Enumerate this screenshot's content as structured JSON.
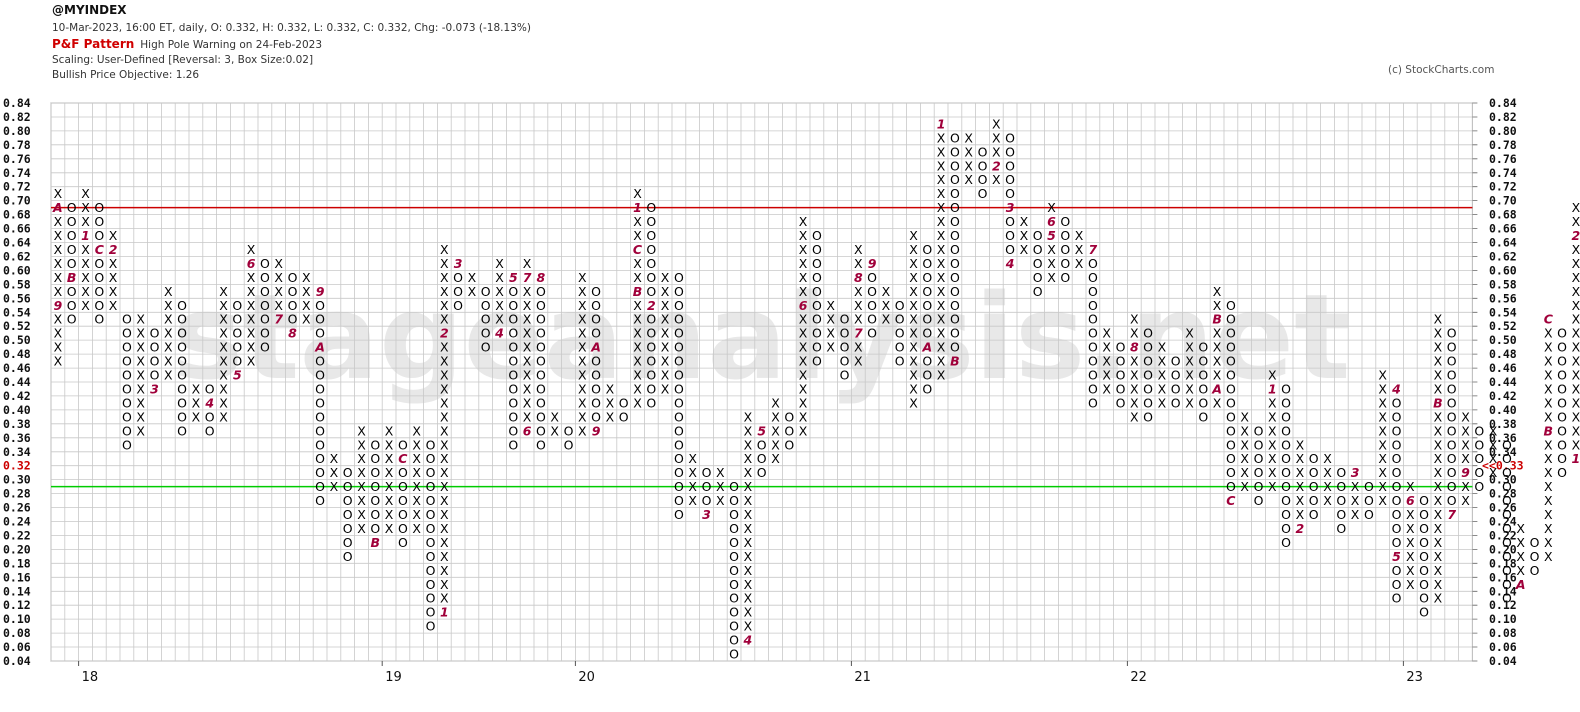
{
  "header": {
    "symbol": "@MYINDEX",
    "quote_line": "10-Mar-2023, 16:00 ET, daily, O: 0.332, H: 0.332, L: 0.332, C: 0.332, Chg: -0.073 (-18.13%)",
    "pattern_label": "P&F Pattern",
    "pattern_text": "High Pole Warning on 24-Feb-2023",
    "scaling_line": "Scaling: User-Defined [Reversal: 3, Box Size:0.02]",
    "objective_line": "Bullish Price Objective: 1.26",
    "credit": "(c) StockCharts.com"
  },
  "watermark": "stageanalysis.net",
  "chart_data": {
    "type": "point-and-figure",
    "box_size": 0.02,
    "reversal": 3,
    "ylim": [
      0.04,
      0.84
    ],
    "y_ticks": [
      "0.84",
      "0.82",
      "0.80",
      "0.78",
      "0.76",
      "0.74",
      "0.72",
      "0.70",
      "0.68",
      "0.66",
      "0.64",
      "0.62",
      "0.60",
      "0.58",
      "0.56",
      "0.54",
      "0.52",
      "0.50",
      "0.48",
      "0.46",
      "0.44",
      "0.42",
      "0.40",
      "0.38",
      "0.36",
      "0.34",
      "0.32",
      "0.30",
      "0.28",
      "0.26",
      "0.24",
      "0.22",
      "0.20",
      "0.18",
      "0.16",
      "0.14",
      "0.12",
      "0.10",
      "0.08",
      "0.06",
      "0.04"
    ],
    "x_labels": [
      {
        "label": "18",
        "col": 2
      },
      {
        "label": "19",
        "col": 24
      },
      {
        "label": "20",
        "col": 38
      },
      {
        "label": "21",
        "col": 58
      },
      {
        "label": "22",
        "col": 78
      },
      {
        "label": "23",
        "col": 98
      }
    ],
    "last_price": {
      "label": "0.32",
      "right_label": "<<0.33",
      "color": "#cc0000"
    },
    "reference_lines": [
      {
        "name": "resistance",
        "value": 0.69,
        "color": "#cc0000"
      },
      {
        "name": "support",
        "value": 0.29,
        "color": "#00cc00"
      }
    ],
    "columns": [
      {
        "type": "X",
        "low": 0.48,
        "high": 0.72,
        "marks": {
          "0.70": "A",
          "0.56": "9"
        }
      },
      {
        "type": "O",
        "low": 0.54,
        "high": 0.7,
        "marks": {
          "0.60": "B"
        }
      },
      {
        "type": "X",
        "low": 0.56,
        "high": 0.72,
        "marks": {
          "0.66": "1"
        }
      },
      {
        "type": "O",
        "low": 0.54,
        "high": 0.7,
        "marks": {
          "0.64": "C"
        }
      },
      {
        "type": "X",
        "low": 0.56,
        "high": 0.66,
        "marks": {
          "0.64": "2"
        }
      },
      {
        "type": "O",
        "low": 0.36,
        "high": 0.54,
        "marks": {}
      },
      {
        "type": "X",
        "low": 0.38,
        "high": 0.54,
        "marks": {}
      },
      {
        "type": "O",
        "low": 0.44,
        "high": 0.52,
        "marks": {
          "0.44": "3"
        }
      },
      {
        "type": "X",
        "low": 0.46,
        "high": 0.58,
        "marks": {}
      },
      {
        "type": "O",
        "low": 0.38,
        "high": 0.56,
        "marks": {}
      },
      {
        "type": "X",
        "low": 0.4,
        "high": 0.44,
        "marks": {}
      },
      {
        "type": "O",
        "low": 0.38,
        "high": 0.44,
        "marks": {
          "0.42": "4"
        }
      },
      {
        "type": "X",
        "low": 0.4,
        "high": 0.58,
        "marks": {}
      },
      {
        "type": "O",
        "low": 0.46,
        "high": 0.56,
        "marks": {
          "0.46": "5"
        }
      },
      {
        "type": "X",
        "low": 0.48,
        "high": 0.64,
        "marks": {
          "0.62": "6"
        }
      },
      {
        "type": "O",
        "low": 0.5,
        "high": 0.62,
        "marks": {}
      },
      {
        "type": "X",
        "low": 0.54,
        "high": 0.62,
        "marks": {
          "0.54": "7"
        }
      },
      {
        "type": "O",
        "low": 0.52,
        "high": 0.6,
        "marks": {
          "0.52": "8"
        }
      },
      {
        "type": "X",
        "low": 0.54,
        "high": 0.6,
        "marks": {}
      },
      {
        "type": "O",
        "low": 0.28,
        "high": 0.58,
        "marks": {
          "0.58": "9",
          "0.50": "A"
        }
      },
      {
        "type": "X",
        "low": 0.3,
        "high": 0.34,
        "marks": {}
      },
      {
        "type": "O",
        "low": 0.2,
        "high": 0.32,
        "marks": {}
      },
      {
        "type": "X",
        "low": 0.24,
        "high": 0.38,
        "marks": {}
      },
      {
        "type": "O",
        "low": 0.22,
        "high": 0.36,
        "marks": {
          "0.22": "B"
        }
      },
      {
        "type": "X",
        "low": 0.24,
        "high": 0.38,
        "marks": {}
      },
      {
        "type": "O",
        "low": 0.22,
        "high": 0.36,
        "marks": {
          "0.34": "C"
        }
      },
      {
        "type": "X",
        "low": 0.24,
        "high": 0.38,
        "marks": {}
      },
      {
        "type": "O",
        "low": 0.1,
        "high": 0.36,
        "marks": {}
      },
      {
        "type": "X",
        "low": 0.12,
        "high": 0.64,
        "marks": {
          "0.12": "1",
          "0.52": "2"
        }
      },
      {
        "type": "O",
        "low": 0.56,
        "high": 0.62,
        "marks": {
          "0.62": "3"
        }
      },
      {
        "type": "X",
        "low": 0.58,
        "high": 0.6,
        "marks": {}
      },
      {
        "type": "O",
        "low": 0.5,
        "high": 0.58,
        "marks": {}
      },
      {
        "type": "X",
        "low": 0.52,
        "high": 0.62,
        "marks": {
          "0.52": "4"
        }
      },
      {
        "type": "O",
        "low": 0.36,
        "high": 0.6,
        "marks": {
          "0.60": "5"
        }
      },
      {
        "type": "X",
        "low": 0.38,
        "high": 0.62,
        "marks": {
          "0.60": "7",
          "0.38": "6"
        }
      },
      {
        "type": "O",
        "low": 0.36,
        "high": 0.6,
        "marks": {
          "0.60": "8"
        }
      },
      {
        "type": "X",
        "low": 0.38,
        "high": 0.4,
        "marks": {}
      },
      {
        "type": "O",
        "low": 0.36,
        "high": 0.38,
        "marks": {}
      },
      {
        "type": "X",
        "low": 0.38,
        "high": 0.6,
        "marks": {}
      },
      {
        "type": "O",
        "low": 0.38,
        "high": 0.58,
        "marks": {
          "0.50": "A",
          "0.38": "9"
        }
      },
      {
        "type": "X",
        "low": 0.4,
        "high": 0.44,
        "marks": {}
      },
      {
        "type": "O",
        "low": 0.4,
        "high": 0.42,
        "marks": {}
      },
      {
        "type": "X",
        "low": 0.42,
        "high": 0.72,
        "marks": {
          "0.70": "1",
          "0.64": "C",
          "0.58": "B"
        }
      },
      {
        "type": "O",
        "low": 0.42,
        "high": 0.7,
        "marks": {
          "0.56": "2"
        }
      },
      {
        "type": "X",
        "low": 0.44,
        "high": 0.6,
        "marks": {}
      },
      {
        "type": "O",
        "low": 0.26,
        "high": 0.6,
        "marks": {}
      },
      {
        "type": "X",
        "low": 0.28,
        "high": 0.34,
        "marks": {}
      },
      {
        "type": "O",
        "low": 0.26,
        "high": 0.32,
        "marks": {
          "0.26": "3"
        }
      },
      {
        "type": "X",
        "low": 0.28,
        "high": 0.32,
        "marks": {}
      },
      {
        "type": "O",
        "low": 0.06,
        "high": 0.3,
        "marks": {}
      },
      {
        "type": "X",
        "low": 0.08,
        "high": 0.4,
        "marks": {
          "0.08": "4"
        }
      },
      {
        "type": "O",
        "low": 0.32,
        "high": 0.38,
        "marks": {
          "0.38": "5"
        }
      },
      {
        "type": "X",
        "low": 0.34,
        "high": 0.42,
        "marks": {}
      },
      {
        "type": "O",
        "low": 0.36,
        "high": 0.4,
        "marks": {}
      },
      {
        "type": "X",
        "low": 0.38,
        "high": 0.68,
        "marks": {
          "0.56": "6"
        }
      },
      {
        "type": "O",
        "low": 0.48,
        "high": 0.66,
        "marks": {}
      },
      {
        "type": "X",
        "low": 0.5,
        "high": 0.56,
        "marks": {}
      },
      {
        "type": "O",
        "low": 0.46,
        "high": 0.54,
        "marks": {}
      },
      {
        "type": "X",
        "low": 0.48,
        "high": 0.64,
        "marks": {
          "0.60": "8",
          "0.52": "7"
        }
      },
      {
        "type": "O",
        "low": 0.52,
        "high": 0.62,
        "marks": {
          "0.62": "9"
        }
      },
      {
        "type": "X",
        "low": 0.54,
        "high": 0.58,
        "marks": {}
      },
      {
        "type": "O",
        "low": 0.48,
        "high": 0.56,
        "marks": {}
      },
      {
        "type": "X",
        "low": 0.42,
        "high": 0.66,
        "marks": {}
      },
      {
        "type": "O",
        "low": 0.44,
        "high": 0.64,
        "marks": {
          "0.50": "A"
        }
      },
      {
        "type": "X",
        "low": 0.46,
        "high": 0.82,
        "marks": {
          "0.82": "1"
        }
      },
      {
        "type": "O",
        "low": 0.48,
        "high": 0.8,
        "marks": {
          "0.48": "B"
        }
      },
      {
        "type": "X",
        "low": 0.74,
        "high": 0.8,
        "marks": {}
      },
      {
        "type": "O",
        "low": 0.72,
        "high": 0.78,
        "marks": {}
      },
      {
        "type": "X",
        "low": 0.74,
        "high": 0.82,
        "marks": {
          "0.76": "2"
        }
      },
      {
        "type": "O",
        "low": 0.62,
        "high": 0.8,
        "marks": {
          "0.70": "3",
          "0.62": "4"
        }
      },
      {
        "type": "X",
        "low": 0.64,
        "high": 0.68,
        "marks": {}
      },
      {
        "type": "O",
        "low": 0.58,
        "high": 0.66,
        "marks": {}
      },
      {
        "type": "X",
        "low": 0.6,
        "high": 0.7,
        "marks": {
          "0.66": "5",
          "0.68": "6"
        }
      },
      {
        "type": "O",
        "low": 0.6,
        "high": 0.68,
        "marks": {}
      },
      {
        "type": "X",
        "low": 0.62,
        "high": 0.66,
        "marks": {}
      },
      {
        "type": "O",
        "low": 0.42,
        "high": 0.64,
        "marks": {
          "0.64": "7"
        }
      },
      {
        "type": "X",
        "low": 0.44,
        "high": 0.52,
        "marks": {}
      },
      {
        "type": "O",
        "low": 0.42,
        "high": 0.5,
        "marks": {}
      },
      {
        "type": "X",
        "low": 0.4,
        "high": 0.54,
        "marks": {
          "0.50": "8"
        }
      },
      {
        "type": "O",
        "low": 0.4,
        "high": 0.52,
        "marks": {}
      },
      {
        "type": "X",
        "low": 0.42,
        "high": 0.5,
        "marks": {
          "0.52": "9"
        }
      },
      {
        "type": "O",
        "low": 0.42,
        "high": 0.48,
        "marks": {}
      },
      {
        "type": "X",
        "low": 0.42,
        "high": 0.52,
        "marks": {}
      },
      {
        "type": "O",
        "low": 0.4,
        "high": 0.5,
        "marks": {}
      },
      {
        "type": "X",
        "low": 0.42,
        "high": 0.58,
        "marks": {
          "0.54": "B",
          "0.44": "A"
        }
      },
      {
        "type": "O",
        "low": 0.28,
        "high": 0.56,
        "marks": {
          "0.28": "C"
        }
      },
      {
        "type": "X",
        "low": 0.3,
        "high": 0.4,
        "marks": {}
      },
      {
        "type": "O",
        "low": 0.28,
        "high": 0.38,
        "marks": {}
      },
      {
        "type": "X",
        "low": 0.3,
        "high": 0.46,
        "marks": {
          "0.44": "1"
        }
      },
      {
        "type": "O",
        "low": 0.22,
        "high": 0.44,
        "marks": {}
      },
      {
        "type": "X",
        "low": 0.24,
        "high": 0.36,
        "marks": {
          "0.24": "2"
        }
      },
      {
        "type": "O",
        "low": 0.26,
        "high": 0.34,
        "marks": {}
      },
      {
        "type": "X",
        "low": 0.28,
        "high": 0.34,
        "marks": {}
      },
      {
        "type": "O",
        "low": 0.24,
        "high": 0.32,
        "marks": {}
      },
      {
        "type": "X",
        "low": 0.26,
        "high": 0.32,
        "marks": {
          "0.32": "3"
        }
      },
      {
        "type": "O",
        "low": 0.26,
        "high": 0.3,
        "marks": {}
      },
      {
        "type": "X",
        "low": 0.28,
        "high": 0.46,
        "marks": {}
      },
      {
        "type": "O",
        "low": 0.14,
        "high": 0.44,
        "marks": {
          "0.44": "4",
          "0.20": "5"
        }
      },
      {
        "type": "X",
        "low": 0.16,
        "high": 0.3,
        "marks": {
          "0.28": "6"
        }
      },
      {
        "type": "O",
        "low": 0.12,
        "high": 0.28,
        "marks": {}
      },
      {
        "type": "X",
        "low": 0.14,
        "high": 0.54,
        "marks": {
          "0.42": "B"
        }
      },
      {
        "type": "O",
        "low": 0.26,
        "high": 0.52,
        "marks": {
          "0.26": "7"
        }
      },
      {
        "type": "X",
        "low": 0.28,
        "high": 0.4,
        "marks": {
          "0.32": "9"
        }
      },
      {
        "type": "O",
        "low": 0.3,
        "high": 0.38,
        "marks": {}
      },
      {
        "type": "X",
        "low": 0.32,
        "high": 0.38,
        "marks": {}
      },
      {
        "type": "O",
        "low": 0.14,
        "high": 0.36,
        "marks": {}
      },
      {
        "type": "X",
        "low": 0.16,
        "high": 0.24,
        "marks": {
          "0.16": "A"
        }
      },
      {
        "type": "O",
        "low": 0.18,
        "high": 0.22,
        "marks": {}
      },
      {
        "type": "X",
        "low": 0.2,
        "high": 0.54,
        "marks": {
          "0.54": "C",
          "0.38": "B"
        }
      },
      {
        "type": "O",
        "low": 0.32,
        "high": 0.52,
        "marks": {}
      },
      {
        "type": "X",
        "low": 0.34,
        "high": 0.7,
        "marks": {
          "0.66": "2",
          "0.34": "1"
        }
      },
      {
        "type": "O",
        "low": 0.34,
        "high": 0.68,
        "marks": {
          "0.50": "3"
        },
        "recent_from": 0.4
      }
    ]
  }
}
